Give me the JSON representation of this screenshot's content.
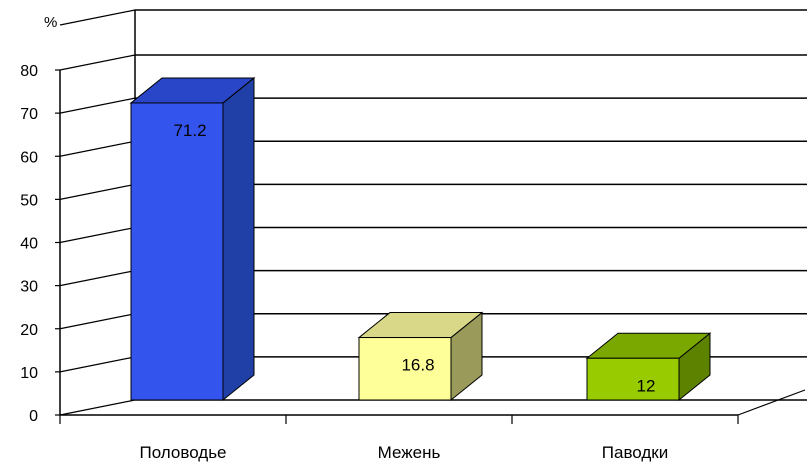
{
  "chart_data": {
    "type": "bar",
    "title": "",
    "xlabel": "",
    "ylabel": "%",
    "categories": [
      "Половодье",
      "Межень",
      "Паводки"
    ],
    "values": [
      71.2,
      16.8,
      12
    ],
    "data_labels": [
      "71.2",
      "16.8",
      "12"
    ],
    "ylim": [
      0,
      80
    ],
    "yticks": [
      0,
      10,
      20,
      30,
      40,
      50,
      60,
      70,
      80
    ],
    "grid": true,
    "legend": "none",
    "style": "3d-column",
    "colors": {
      "bars": [
        "#3355ee",
        "#ffff99",
        "#99cc00"
      ],
      "bar_tops": [
        "#2a46c8",
        "#d8d888",
        "#7aa800"
      ],
      "bar_sides": [
        "#2040a8",
        "#9a9a5a",
        "#5c8200"
      ],
      "grid": "#000000",
      "axis": "#000000"
    }
  }
}
